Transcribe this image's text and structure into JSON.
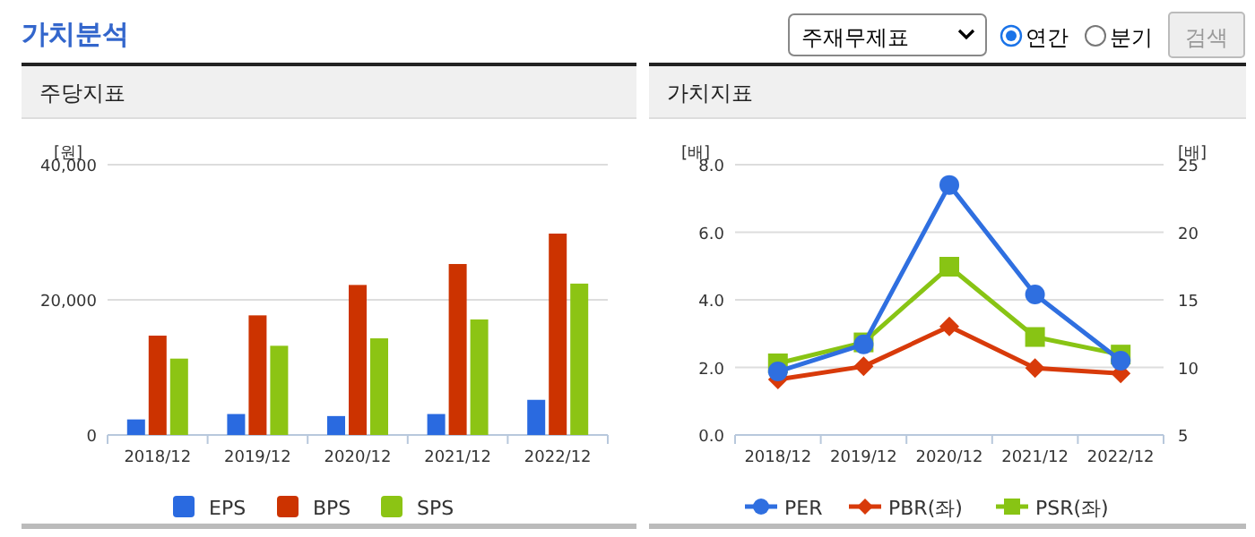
{
  "chart_data": [
    {
      "type": "other",
      "title": "가치분석",
      "annotations": [
        "주재무제표",
        "연간",
        "분기",
        "검색"
      ]
    },
    {
      "type": "bar",
      "title": "주당지표",
      "ylabel": "[원]",
      "categories": [
        "2018/12",
        "2019/12",
        "2020/12",
        "2021/12",
        "2022/12"
      ],
      "series": [
        {
          "name": "EPS",
          "color": "#2a6ae0",
          "values": [
            2300,
            3100,
            2800,
            3100,
            5200
          ]
        },
        {
          "name": "BPS",
          "color": "#cc3300",
          "values": [
            14700,
            17700,
            22200,
            25300,
            29800
          ]
        },
        {
          "name": "SPS",
          "color": "#8cc414",
          "values": [
            11300,
            13200,
            14300,
            17100,
            22400
          ]
        }
      ],
      "ylim": [
        0,
        40000
      ],
      "yticks": [
        0,
        {
          "value": 20000,
          "label": "20,000"
        },
        {
          "value": 40000,
          "label": "40,000"
        }
      ],
      "grid": "y",
      "legend": "bottom"
    },
    {
      "type": "line",
      "title": "가치지표",
      "ylabel": "[배]",
      "y2label": "[배]",
      "categories": [
        "2018/12",
        "2019/12",
        "2020/12",
        "2021/12",
        "2022/12"
      ],
      "series": [
        {
          "name": "PER",
          "color": "#2f6fe0",
          "axis": "y2",
          "marker": "circle",
          "values": [
            9.7,
            11.7,
            23.5,
            15.4,
            10.5
          ]
        },
        {
          "name": "PBR(좌)",
          "color": "#d83a0a",
          "marker": "diamond",
          "values": [
            1.64,
            2.03,
            3.21,
            1.98,
            1.82
          ]
        },
        {
          "name": "PSR(좌)",
          "color": "#88c414",
          "marker": "square",
          "values": [
            2.12,
            2.74,
            4.98,
            2.9,
            2.38
          ]
        }
      ],
      "ylim": [
        0,
        8
      ],
      "yticks": [
        {
          "value": 0,
          "label": "0.0"
        },
        {
          "value": 2,
          "label": "2.0"
        },
        {
          "value": 4,
          "label": "4.0"
        },
        {
          "value": 6,
          "label": "6.0"
        },
        {
          "value": 8,
          "label": "8.0"
        }
      ],
      "y2lim": [
        5,
        25
      ],
      "y2ticks": [
        5,
        10,
        15,
        20,
        25
      ],
      "grid": "y",
      "legend": "bottom",
      "line_style": "solid"
    }
  ]
}
